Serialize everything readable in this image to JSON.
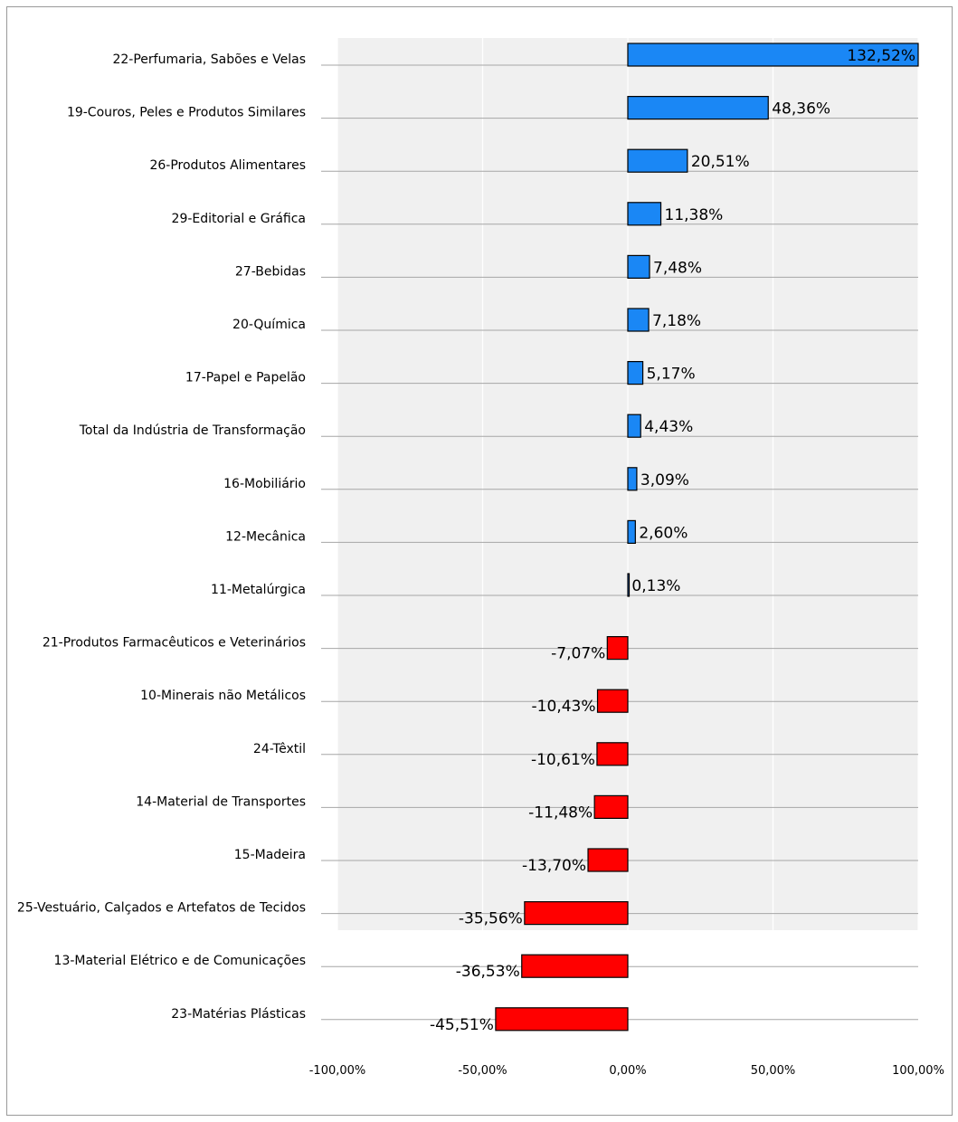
{
  "chart_data": {
    "type": "bar",
    "orientation": "horizontal",
    "categories": [
      "22-Perfumaria, Sabões e Velas",
      "19-Couros, Peles e Produtos Similares",
      "26-Produtos Alimentares",
      "29-Editorial e Gráfica",
      "27-Bebidas",
      "20-Química",
      "17-Papel e Papelão",
      "Total da Indústria de Transformação",
      "16-Mobiliário",
      "12-Mecânica",
      "11-Metalúrgica",
      "21-Produtos Farmacêuticos e Veterinários",
      "10-Minerais não Metálicos",
      "24-Têxtil",
      "14-Material de Transportes",
      "15-Madeira",
      "25-Vestuário, Calçados e Artefatos de Tecidos",
      "13-Material Elétrico e de Comunicações",
      "23-Matérias Plásticas"
    ],
    "values": [
      132.52,
      48.36,
      20.51,
      11.38,
      7.48,
      7.18,
      5.17,
      4.43,
      3.09,
      2.6,
      0.13,
      -7.07,
      -10.43,
      -10.61,
      -11.48,
      -13.7,
      -35.56,
      -36.53,
      -45.51
    ],
    "value_labels": [
      "132,52%",
      "48,36%",
      "20,51%",
      "11,38%",
      "7,48%",
      "7,18%",
      "5,17%",
      "4,43%",
      "3,09%",
      "2,60%",
      "0,13%",
      "-7,07%",
      "-10,43%",
      "-10,61%",
      "-11,48%",
      "-13,70%",
      "-35,56%",
      "-36,53%",
      "-45,51%"
    ],
    "xlim": [
      -100,
      100
    ],
    "x_ticks": [
      -100,
      -50,
      0,
      50,
      100
    ],
    "x_tick_labels": [
      "-100,00%",
      "-50,00%",
      "0,00%",
      "50,00%",
      "100,00%"
    ],
    "colors": {
      "positive": "#1a87f5",
      "negative": "#ff0000",
      "plot_background": "#f0f0f0",
      "gridline": "#a6a6a6",
      "bar_border": "#000000"
    },
    "grid": true,
    "legend": "none",
    "title": "",
    "xlabel": "",
    "ylabel": ""
  }
}
